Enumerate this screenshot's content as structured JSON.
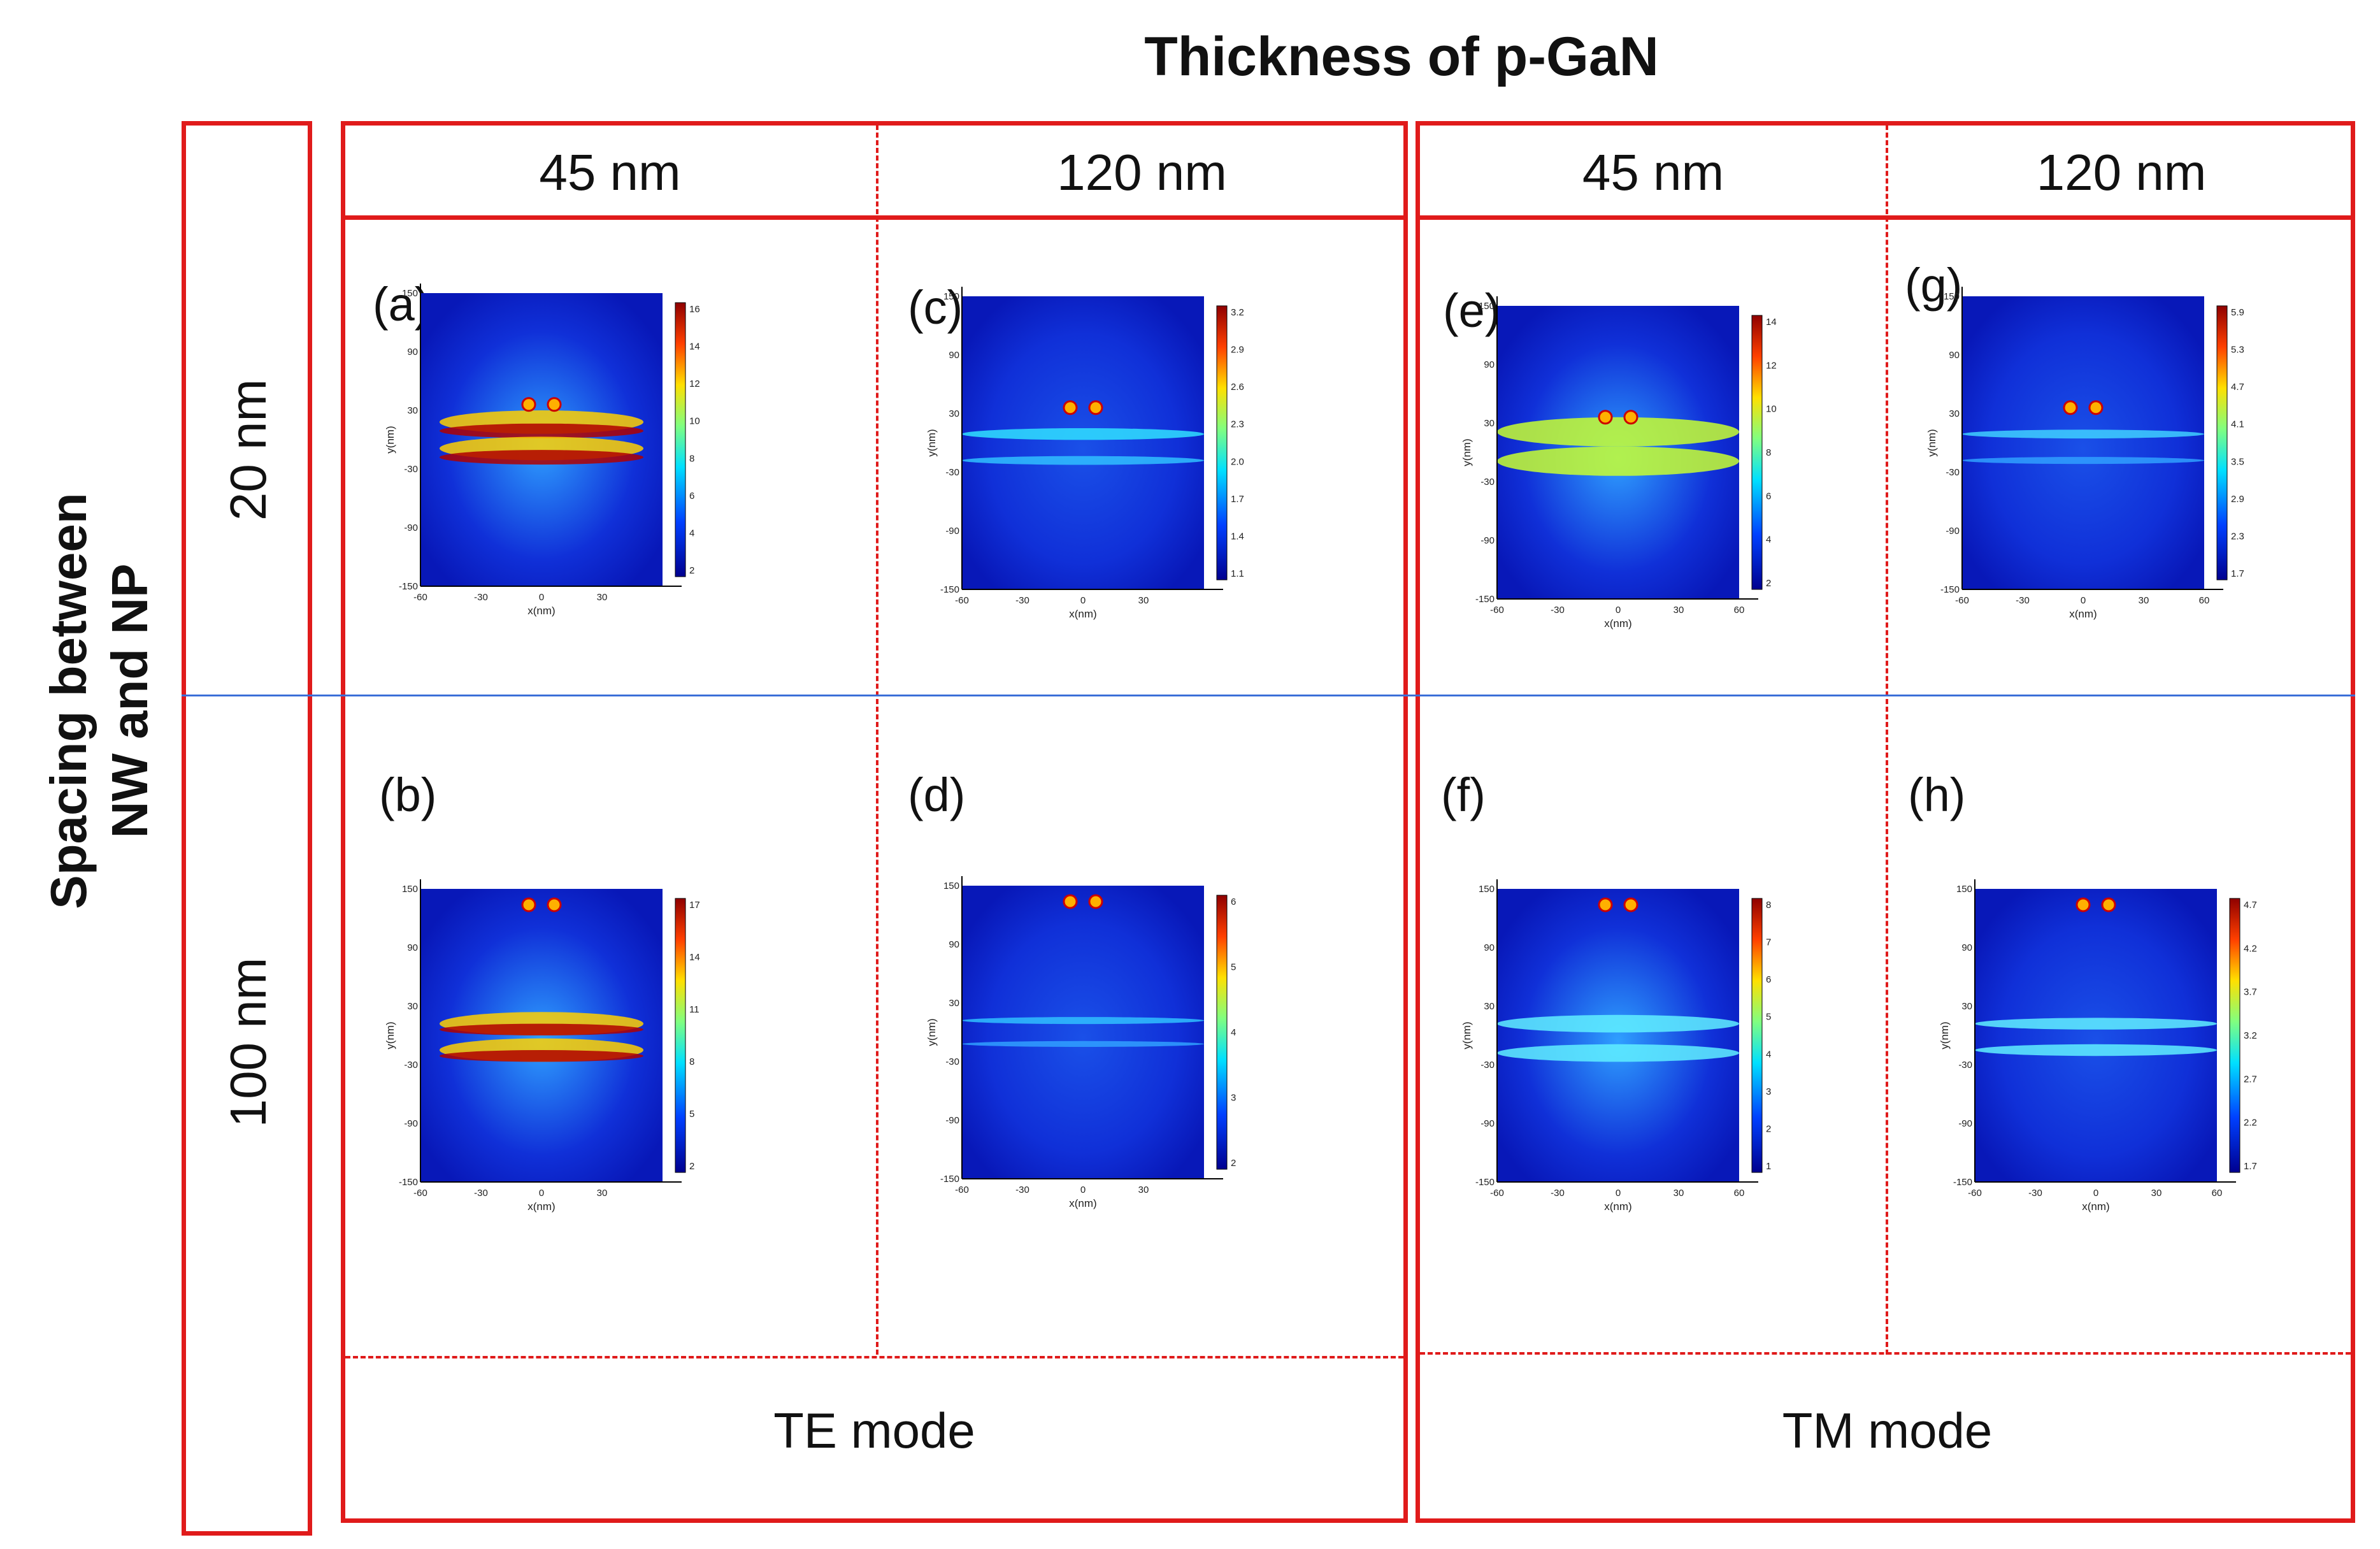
{
  "title": "Thickness of p-GaN",
  "row_axis_title": "Spacing between\nNW and NP",
  "row_axis_title_lines": [
    "Spacing between",
    "NW and NP"
  ],
  "row_labels": [
    "20 nm",
    "100 nm"
  ],
  "column_headers": [
    "45 nm",
    "120 nm",
    "45 nm",
    "120 nm"
  ],
  "mode_labels": [
    "TE mode",
    "TM mode"
  ],
  "colors": {
    "frame": "#e01b1b",
    "row_divider": "#3b6fd8"
  },
  "panels": [
    {
      "id": "a",
      "label": "(a)",
      "cbar_ticks": [
        "16",
        "14",
        "12",
        "10",
        "8",
        "6",
        "4",
        "2"
      ],
      "xlabel": "x(nm)",
      "ylabel": "y(nm)",
      "x_ticks": [
        "-60",
        "-30",
        "0",
        "30"
      ],
      "y_ticks": [
        "150",
        "90",
        "30",
        "-30",
        "-90",
        "-150"
      ],
      "pattern": "te45"
    },
    {
      "id": "c",
      "label": "(c)",
      "cbar_ticks": [
        "3.2",
        "2.9",
        "2.6",
        "2.3",
        "2.0",
        "1.7",
        "1.4",
        "1.1"
      ],
      "xlabel": "x(nm)",
      "ylabel": "y(nm)",
      "x_ticks": [
        "-60",
        "-30",
        "0",
        "30"
      ],
      "y_ticks": [
        "150",
        "90",
        "30",
        "-30",
        "-90",
        "-150"
      ],
      "pattern": "te120"
    },
    {
      "id": "e",
      "label": "(e)",
      "cbar_ticks": [
        "14",
        "12",
        "10",
        "8",
        "6",
        "4",
        "2"
      ],
      "xlabel": "x(nm)",
      "ylabel": "y(nm)",
      "x_ticks": [
        "-60",
        "-30",
        "0",
        "30",
        "60"
      ],
      "y_ticks": [
        "150",
        "90",
        "30",
        "-30",
        "-90",
        "-150"
      ],
      "pattern": "tm45"
    },
    {
      "id": "g",
      "label": "(g)",
      "cbar_ticks": [
        "5.9",
        "5.3",
        "4.7",
        "4.1",
        "3.5",
        "2.9",
        "2.3",
        "1.7"
      ],
      "xlabel": "x(nm)",
      "ylabel": "y(nm)",
      "x_ticks": [
        "-60",
        "-30",
        "0",
        "30",
        "60"
      ],
      "y_ticks": [
        "150",
        "90",
        "30",
        "-30",
        "-90",
        "-150"
      ],
      "pattern": "tm120"
    },
    {
      "id": "b",
      "label": "(b)",
      "cbar_ticks": [
        "17",
        "14",
        "11",
        "8",
        "5",
        "2"
      ],
      "xlabel": "x(nm)",
      "ylabel": "y(nm)",
      "x_ticks": [
        "-60",
        "-30",
        "0",
        "30"
      ],
      "y_ticks": [
        "150",
        "90",
        "30",
        "-30",
        "-90",
        "-150"
      ],
      "pattern": "te45b"
    },
    {
      "id": "d",
      "label": "(d)",
      "cbar_ticks": [
        "6",
        "5",
        "4",
        "3",
        "2"
      ],
      "xlabel": "x(nm)",
      "ylabel": "y(nm)",
      "x_ticks": [
        "-60",
        "-30",
        "0",
        "30"
      ],
      "y_ticks": [
        "150",
        "90",
        "30",
        "-30",
        "-90",
        "-150"
      ],
      "pattern": "te120b"
    },
    {
      "id": "f",
      "label": "(f)",
      "cbar_ticks": [
        "8",
        "7",
        "6",
        "5",
        "4",
        "3",
        "2",
        "1"
      ],
      "xlabel": "x(nm)",
      "ylabel": "y(nm)",
      "x_ticks": [
        "-60",
        "-30",
        "0",
        "30",
        "60"
      ],
      "y_ticks": [
        "150",
        "90",
        "30",
        "-30",
        "-90",
        "-150"
      ],
      "pattern": "tm45b"
    },
    {
      "id": "h",
      "label": "(h)",
      "cbar_ticks": [
        "4.7",
        "4.2",
        "3.7",
        "3.2",
        "2.7",
        "2.2",
        "1.7"
      ],
      "xlabel": "x(nm)",
      "ylabel": "y(nm)",
      "x_ticks": [
        "-60",
        "-30",
        "0",
        "30",
        "60"
      ],
      "y_ticks": [
        "150",
        "90",
        "30",
        "-30",
        "-90",
        "-150"
      ],
      "pattern": "tm120b"
    }
  ]
}
